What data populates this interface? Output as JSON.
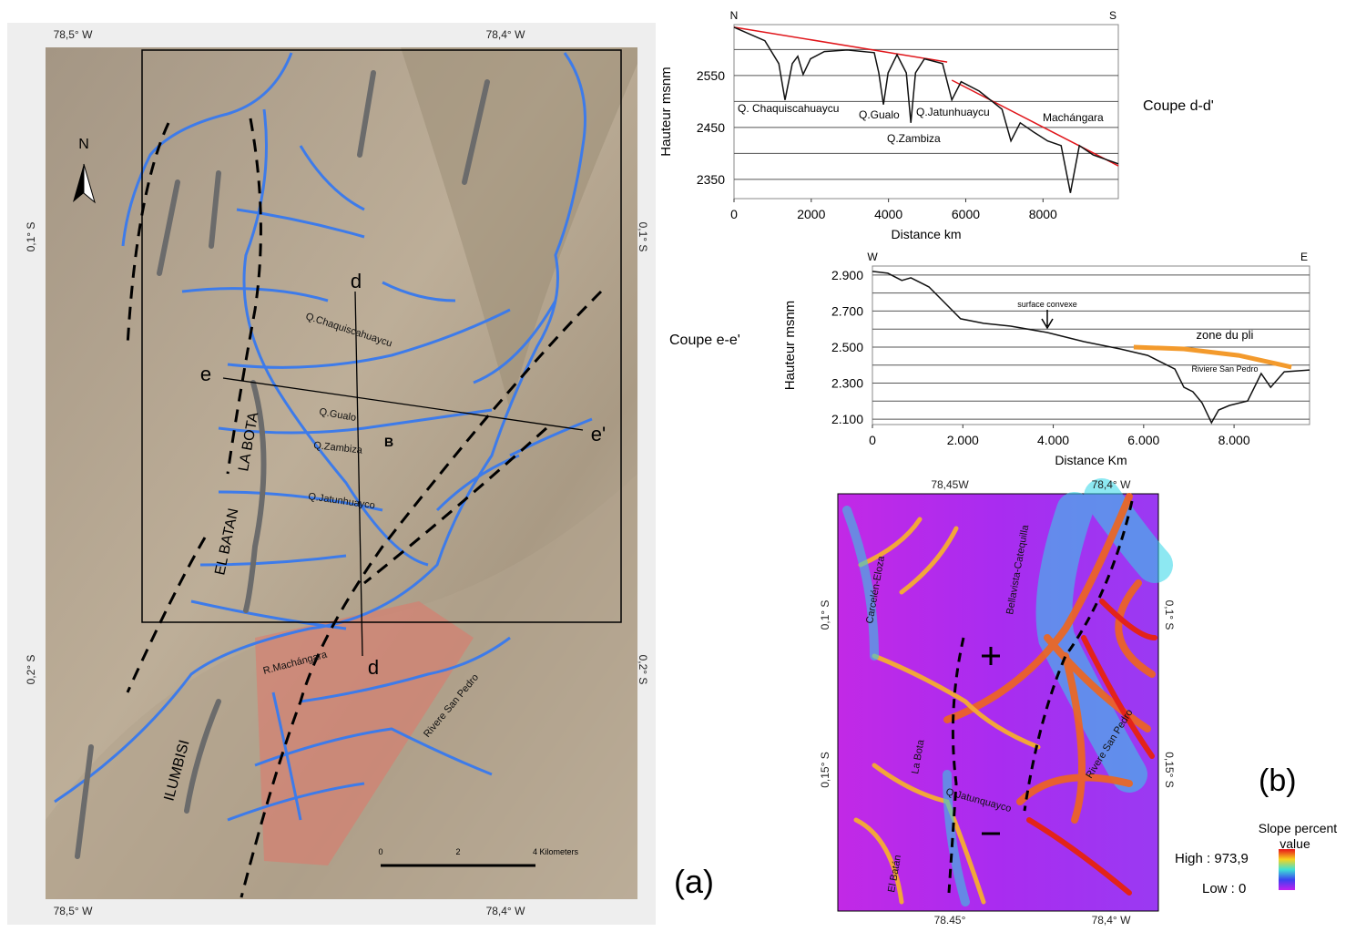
{
  "panel_a": {
    "label": "(a)",
    "coords_top": [
      "78,5° W",
      "78,4° W"
    ],
    "coords_bottom": [
      "78,5° W",
      "78,4° W"
    ],
    "coords_left": [
      "0,1° S",
      "0,2° S"
    ],
    "coords_right": [
      "0,1° S",
      "0,2° S"
    ],
    "north": "N",
    "section_labels": [
      "d",
      "d",
      "e",
      "e'"
    ],
    "features": [
      "Q.Chaquiscahuaycu",
      "Q.Gualo",
      "Q.Zambiza",
      "Q.Jatunhuayco",
      "EL BATAN",
      "LA BOTA",
      "ILUMBISI",
      "R.Machángara",
      "Rivere San Pedro",
      "B"
    ],
    "scale": [
      "0",
      "2",
      "4 Kilometers"
    ]
  },
  "profile_dd": {
    "type": "line",
    "title": "Coupe d-d'",
    "end_labels": [
      "N",
      "S"
    ],
    "ylabel": "Hauteur msnm",
    "xlabel": "Distance km",
    "xlim": [
      0,
      9950
    ],
    "xticks": [
      0,
      2000,
      4000,
      6000,
      8000
    ],
    "ylim": [
      2313,
      2648
    ],
    "yticks": [
      2350,
      2450,
      2550
    ],
    "grid_lines": [
      2400,
      2500,
      2600
    ],
    "line_color": "#111111",
    "x": [
      0,
      800,
      1160,
      1320,
      1510,
      1650,
      1790,
      1980,
      2340,
      2930,
      3630,
      3750,
      3870,
      3990,
      4220,
      4460,
      4580,
      4700,
      4930,
      5400,
      5640,
      5880,
      6350,
      6940,
      7170,
      7410,
      7760,
      8120,
      8470,
      8710,
      8940,
      9300,
      9950
    ],
    "y": [
      2643,
      2617,
      2573,
      2503,
      2573,
      2587,
      2552,
      2582,
      2596,
      2599,
      2594,
      2555,
      2494,
      2555,
      2590,
      2555,
      2459,
      2555,
      2582,
      2573,
      2503,
      2538,
      2520,
      2485,
      2424,
      2459,
      2441,
      2424,
      2415,
      2324,
      2415,
      2397,
      2380
    ],
    "overlays": [
      {
        "color": "#e0161b",
        "x": [
          0,
          5520
        ],
        "y": [
          2643,
          2576
        ]
      },
      {
        "color": "#e0161b",
        "x": [
          5640,
          9950
        ],
        "y": [
          2541,
          2376
        ]
      }
    ],
    "annotations": [
      "Q. Chaquiscahuaycu",
      "Q.Gualo",
      "Q.Jatunhuaycu",
      "Q.Zambiza",
      "Machángara"
    ]
  },
  "profile_ee": {
    "type": "line",
    "title": "Coupe e-e'",
    "end_labels": [
      "W",
      "E"
    ],
    "ylabel": "Hauteur msnm",
    "xlabel": "Distance Km",
    "xlim": [
      0,
      9670
    ],
    "xticks": [
      0,
      {
        "value": 2000,
        "label": "2.000"
      },
      {
        "value": 4000,
        "label": "4.000"
      },
      {
        "value": 6000,
        "label": "6.000"
      },
      {
        "value": 8000,
        "label": "8.000"
      }
    ],
    "ylim": [
      2070,
      2950
    ],
    "yticks": [
      {
        "value": 2100,
        "label": "2.100"
      },
      {
        "value": 2300,
        "label": "2.300"
      },
      {
        "value": 2500,
        "label": "2.500"
      },
      {
        "value": 2700,
        "label": "2.700"
      },
      {
        "value": 2900,
        "label": "2.900"
      }
    ],
    "grid_lines": [
      2200,
      2400,
      2600,
      2800
    ],
    "line_color": "#111111",
    "x": [
      0,
      340,
      650,
      850,
      1250,
      1650,
      1950,
      2460,
      3060,
      3870,
      4680,
      5480,
      6090,
      6690,
      6890,
      7090,
      7290,
      7500,
      7660,
      7900,
      8300,
      8600,
      8810,
      9110,
      9670
    ],
    "y": [
      2920,
      2910,
      2870,
      2885,
      2834,
      2733,
      2657,
      2632,
      2616,
      2581,
      2530,
      2490,
      2454,
      2378,
      2277,
      2252,
      2191,
      2080,
      2151,
      2176,
      2201,
      2353,
      2277,
      2363,
      2373
    ],
    "overlays": [
      {
        "color": "#f39a2c",
        "x": [
          5780,
          6890,
          8100,
          9270
        ],
        "y": [
          2500,
          2490,
          2454,
          2389
        ]
      }
    ],
    "annotations": [
      "surface convexe",
      "zone du pli",
      "Riviere San Pedro"
    ]
  },
  "panel_b": {
    "label": "(b)",
    "coords_top": [
      "78,45W",
      "78,4° W"
    ],
    "coords_bottom": [
      "78.45°",
      "78,4° W"
    ],
    "coords_left": [
      "0,1° S",
      "0,15° S"
    ],
    "coords_right": [
      "0,1° S",
      "0,15° S"
    ],
    "places": [
      "Carcelén-Eloza",
      "Bellavista-Catequilla",
      "La Bota",
      "El Batán",
      "Q.Jatunquayco",
      "Rivere San Pedro"
    ],
    "legend_title": [
      "Slope percent",
      "value"
    ],
    "legend_high": "High : 973,9",
    "legend_low": "Low : 0"
  }
}
